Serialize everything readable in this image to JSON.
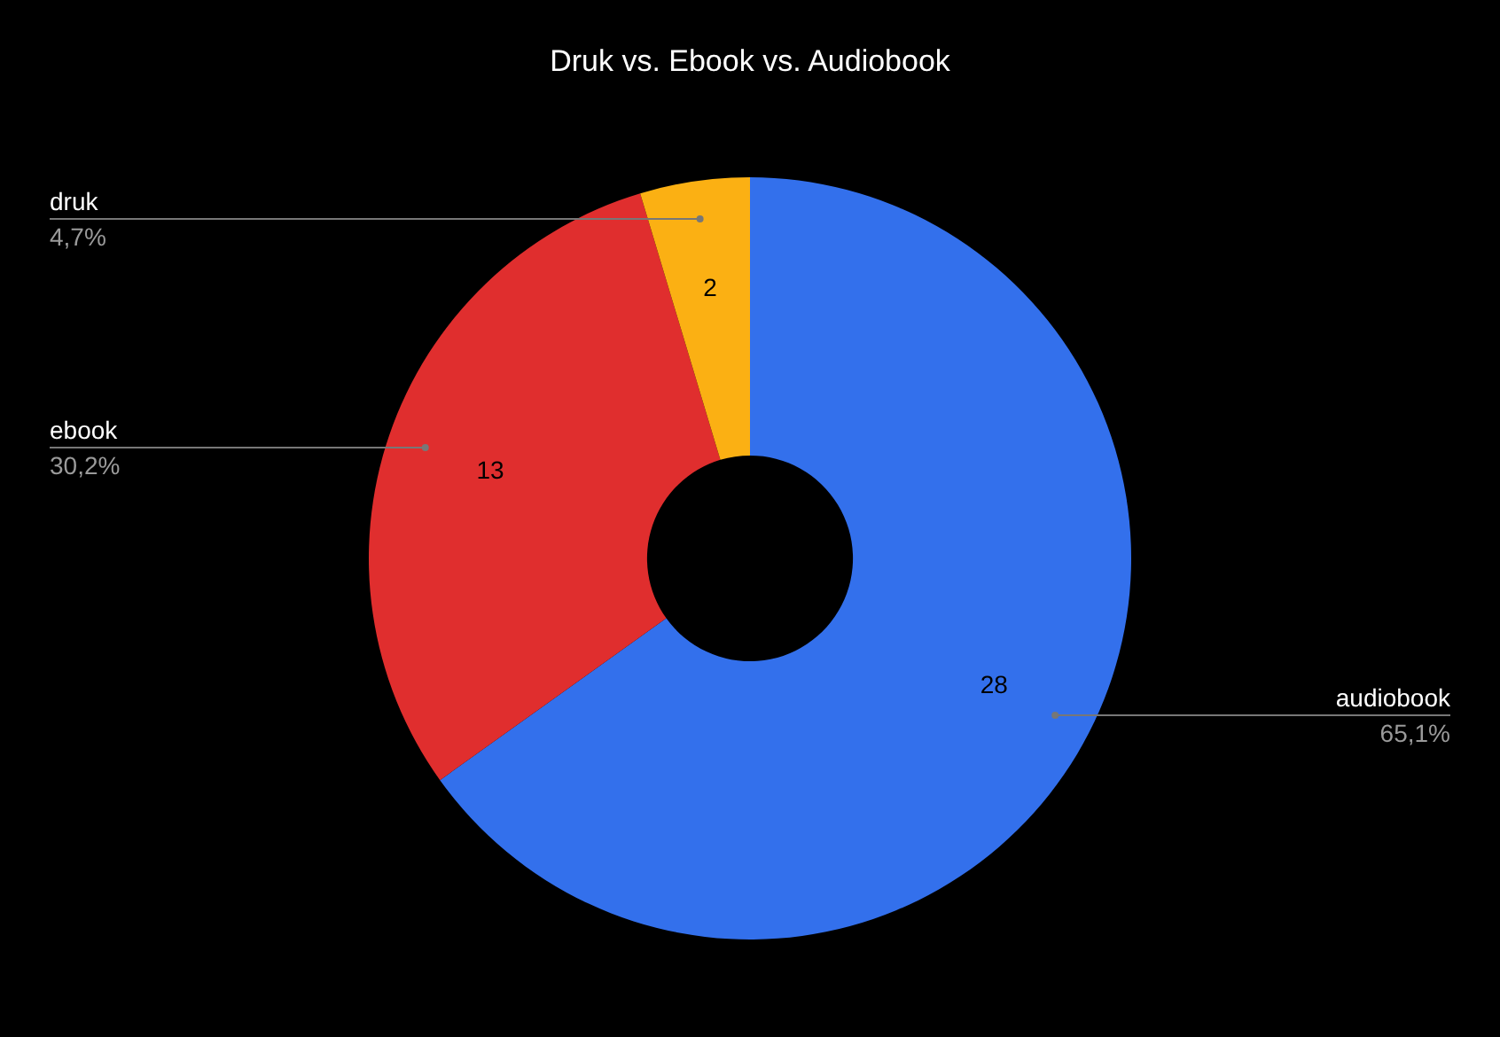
{
  "chart_data": {
    "type": "donut",
    "title": "Druk vs. Ebook vs. Audiobook",
    "categories": [
      "audiobook",
      "ebook",
      "druk"
    ],
    "values": [
      28,
      13,
      2
    ],
    "colors": [
      "#3370ec",
      "#e02e2e",
      "#fbb013"
    ],
    "data_labels": true,
    "annotations": [
      "65,1%",
      "30,2%",
      "4,7%"
    ]
  }
}
